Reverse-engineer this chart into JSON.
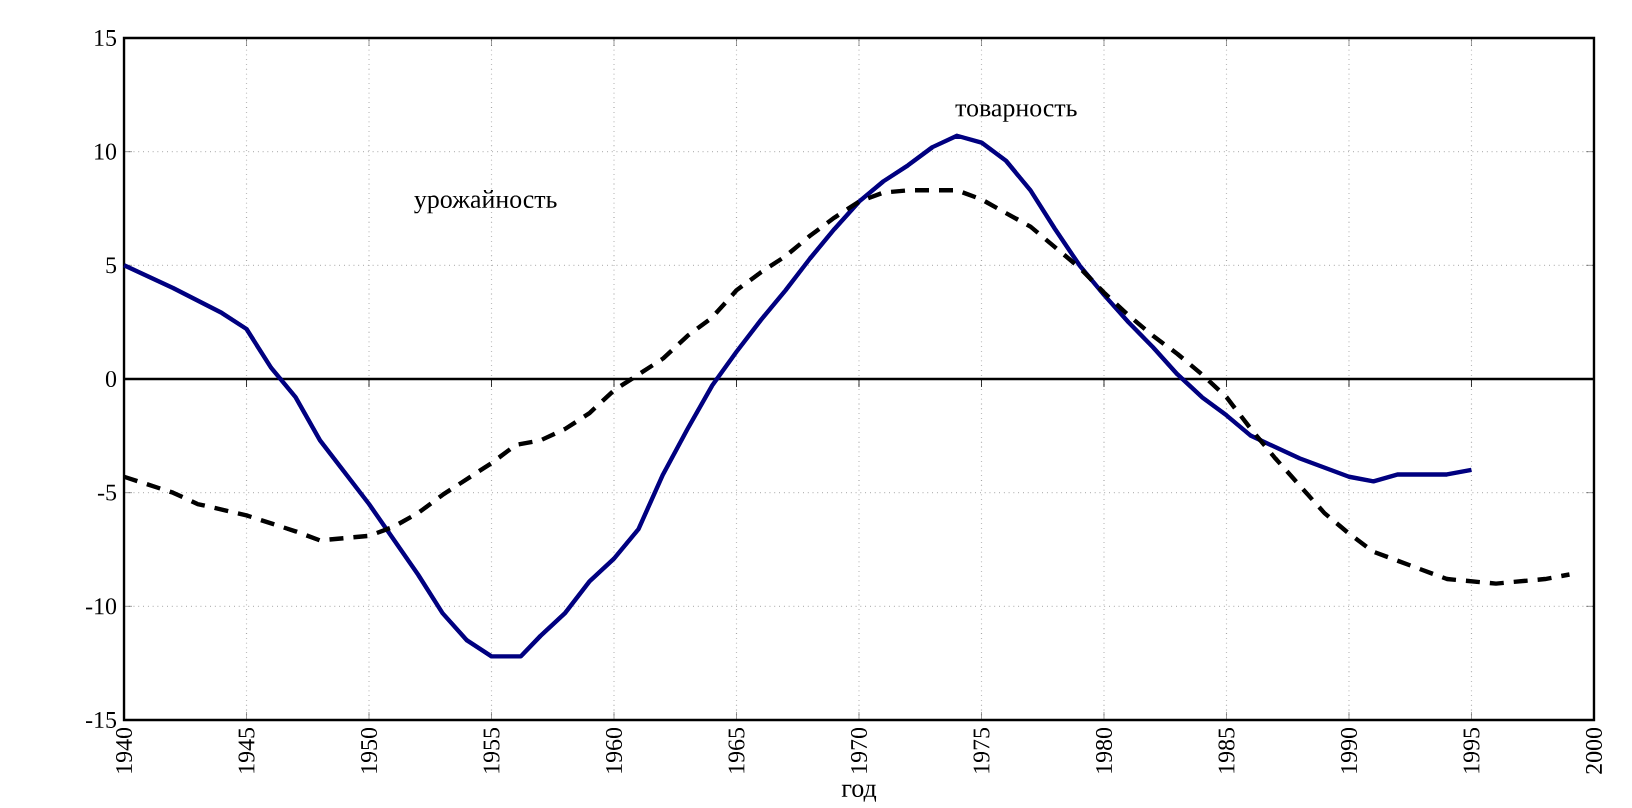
{
  "chart_data": {
    "type": "line",
    "xlabel": "год",
    "xlim": [
      1940,
      2000
    ],
    "xticks": [
      1940,
      1945,
      1950,
      1955,
      1960,
      1965,
      1970,
      1975,
      1980,
      1985,
      1990,
      1995,
      2000
    ],
    "ylim": [
      -15,
      15
    ],
    "yticks": [
      -15,
      -10,
      -5,
      0,
      5,
      10,
      15
    ],
    "grid": true,
    "ref_lines": [
      {
        "axis": "y",
        "value": 0,
        "color": "#000000"
      }
    ],
    "series": [
      {
        "color": "#000080",
        "line_style": "solid",
        "x": [
          1940,
          1942,
          1944,
          1945,
          1946,
          1947,
          1948,
          1950,
          1952,
          1953,
          1954,
          1955,
          1956.2,
          1957,
          1958,
          1959,
          1960,
          1961,
          1962,
          1963,
          1964,
          1965,
          1966,
          1967,
          1968,
          1969,
          1970,
          1971,
          1972,
          1973,
          1974,
          1975,
          1976,
          1977,
          1978,
          1979,
          1980,
          1981,
          1982,
          1983,
          1984,
          1985,
          1986,
          1987,
          1988,
          1989,
          1990,
          1991,
          1992,
          1993,
          1994,
          1995
        ],
        "values": [
          5.0,
          4.0,
          2.9,
          2.2,
          0.5,
          -0.8,
          -2.7,
          -5.5,
          -8.6,
          -10.3,
          -11.5,
          -12.2,
          -12.2,
          -11.3,
          -10.3,
          -8.9,
          -7.9,
          -6.6,
          -4.2,
          -2.2,
          -0.3,
          1.2,
          2.6,
          3.9,
          5.3,
          6.6,
          7.8,
          8.7,
          9.4,
          10.2,
          10.7,
          10.4,
          9.6,
          8.3,
          6.6,
          5.0,
          3.7,
          2.5,
          1.4,
          0.2,
          -0.8,
          -1.6,
          -2.5,
          -3.0,
          -3.5,
          -3.9,
          -4.3,
          -4.5,
          -4.2,
          -4.2,
          -4.2,
          -4.0
        ]
      },
      {
        "color": "#000000",
        "line_style": "dashed",
        "x": [
          1940,
          1942,
          1943,
          1945,
          1947,
          1948,
          1950,
          1951,
          1952,
          1953,
          1954,
          1955,
          1956,
          1957,
          1958,
          1959,
          1960,
          1961,
          1962,
          1963,
          1964,
          1965,
          1966,
          1967,
          1968,
          1969,
          1970,
          1971,
          1972,
          1974,
          1975,
          1976,
          1977,
          1978,
          1979,
          1980,
          1981,
          1982,
          1983,
          1984,
          1985,
          1986,
          1987,
          1988,
          1989,
          1990,
          1991,
          1992,
          1993,
          1994,
          1995,
          1996,
          1997,
          1998,
          1999
        ],
        "values": [
          -4.3,
          -5.0,
          -5.5,
          -6.0,
          -6.7,
          -7.1,
          -6.9,
          -6.5,
          -5.9,
          -5.1,
          -4.4,
          -3.7,
          -2.9,
          -2.7,
          -2.2,
          -1.5,
          -0.5,
          0.2,
          0.9,
          1.9,
          2.7,
          3.9,
          4.7,
          5.4,
          6.3,
          7.1,
          7.8,
          8.2,
          8.3,
          8.3,
          7.9,
          7.3,
          6.7,
          5.8,
          4.9,
          3.8,
          2.8,
          1.9,
          1.1,
          0.2,
          -0.8,
          -2.2,
          -3.5,
          -4.7,
          -5.9,
          -6.8,
          -7.6,
          -8.0,
          -8.4,
          -8.8,
          -8.9,
          -9.0,
          -8.9,
          -8.8,
          -8.6
        ]
      }
    ],
    "annotations": [
      "товарность",
      "урожайность"
    ]
  }
}
